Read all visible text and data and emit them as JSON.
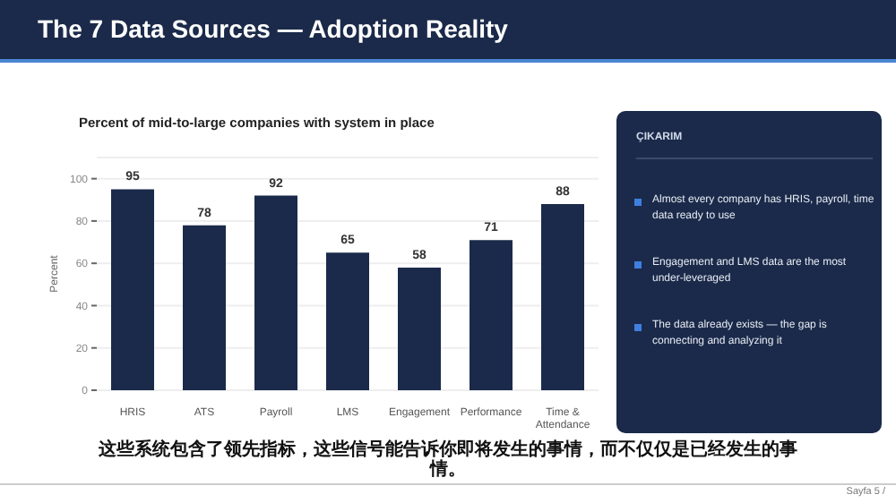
{
  "chart_data": {
    "type": "bar",
    "title": "The 7 Data Sources — Adoption Reality",
    "subtitle": "Percent of mid-to-large companies with system in place",
    "ylabel": "Percent",
    "categories": [
      "HRIS",
      "ATS",
      "Payroll",
      "LMS",
      "Engagement",
      "Performance",
      "Time & Attendance"
    ],
    "values": [
      95,
      78,
      92,
      65,
      58,
      71,
      88
    ],
    "color": "#1b2a4a",
    "ylim": [
      0,
      110
    ],
    "yticks": [
      0,
      20,
      40,
      60,
      80,
      100
    ],
    "grid": "y",
    "data_labels": true,
    "annotations": [
      "ÇIKARIM",
      "Almost every company has HRIS, payroll, time data ready to use",
      "Engagement and LMS data are the most under-leveraged",
      "The data already exists — the gap is connecting and analyzing it",
      "这些系统包含了领先指标，这些信号能告诉你即将发生的事情，而不仅仅是已经发生的事情。",
      "Sayfa 5 /"
    ]
  }
}
